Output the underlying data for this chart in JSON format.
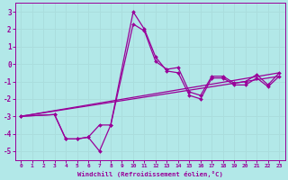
{
  "xlabel": "Windchill (Refroidissement éolien,°C)",
  "bg_color": "#b2e8e8",
  "grid_color": "#aadddd",
  "line_color": "#990099",
  "xlim": [
    -0.5,
    23.5
  ],
  "ylim": [
    -5.5,
    3.5
  ],
  "xticks": [
    0,
    1,
    2,
    3,
    4,
    5,
    6,
    7,
    8,
    9,
    10,
    11,
    12,
    13,
    14,
    15,
    16,
    17,
    18,
    19,
    20,
    21,
    22,
    23
  ],
  "yticks": [
    -5,
    -4,
    -3,
    -2,
    -1,
    0,
    1,
    2,
    3
  ],
  "series_with_markers": [
    {
      "x": [
        0,
        3,
        4,
        5,
        6,
        7,
        8,
        10,
        11,
        12,
        13,
        14,
        15,
        16,
        17,
        18,
        19,
        20,
        21,
        22,
        23
      ],
      "y": [
        -3.0,
        -2.9,
        -4.3,
        -4.3,
        -4.2,
        -5.0,
        -3.5,
        3.0,
        2.0,
        0.4,
        -0.4,
        -0.5,
        -1.8,
        -2.0,
        -0.8,
        -0.8,
        -1.2,
        -1.2,
        -0.8,
        -1.3,
        -0.7
      ]
    },
    {
      "x": [
        0,
        3,
        4,
        5,
        6,
        7,
        8,
        10,
        11,
        12,
        13,
        14,
        15,
        16,
        17,
        18,
        19,
        20,
        21,
        22,
        23
      ],
      "y": [
        -3.0,
        -2.9,
        -4.3,
        -4.3,
        -4.2,
        -3.5,
        -3.5,
        2.3,
        1.9,
        0.15,
        -0.3,
        -0.2,
        -1.6,
        -1.8,
        -0.7,
        -0.7,
        -1.1,
        -1.0,
        -0.6,
        -1.2,
        -0.5
      ]
    }
  ],
  "series_lines": [
    {
      "x": [
        0,
        23
      ],
      "y": [
        -3.0,
        -0.7
      ]
    },
    {
      "x": [
        0,
        23
      ],
      "y": [
        -3.0,
        -0.5
      ]
    }
  ]
}
